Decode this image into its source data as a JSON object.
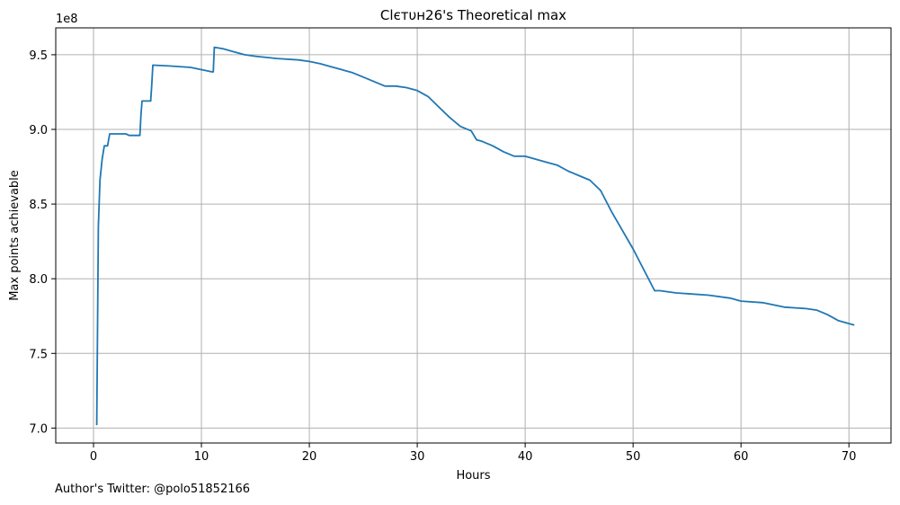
{
  "chart_data": {
    "type": "line",
    "title": "Clєтυн26's Theoretical max",
    "xlabel": "Hours",
    "ylabel": "Max points achievable",
    "y_offset_label": "1e8",
    "xlim": [
      -3.5,
      73.9
    ],
    "ylim": [
      6.9,
      9.68
    ],
    "xticks": [
      0,
      10,
      20,
      30,
      40,
      50,
      60,
      70
    ],
    "yticks": [
      7.0,
      7.5,
      8.0,
      8.5,
      9.0,
      9.5
    ],
    "xtick_labels": [
      "0",
      "10",
      "20",
      "30",
      "40",
      "50",
      "60",
      "70"
    ],
    "ytick_labels": [
      "7.0",
      "7.5",
      "8.0",
      "8.5",
      "9.0",
      "9.5"
    ],
    "grid": true,
    "line_color": "#1f77b4",
    "series": [
      {
        "x": [
          0.3,
          0.45,
          0.6,
          0.8,
          1.0,
          1.3,
          1.5,
          3.0,
          3.3,
          4.0,
          4.3,
          4.4,
          4.5,
          5.3,
          5.4,
          5.5,
          7.0,
          9.0,
          10.0,
          11.0,
          11.1,
          11.2,
          12.0,
          13.0,
          14.0,
          15.0,
          17.0,
          19.0,
          20.0,
          21.0,
          22.0,
          23.0,
          24.0,
          25.0,
          26.0,
          27.0,
          28.0,
          29.0,
          30.0,
          31.0,
          32.0,
          33.0,
          34.0,
          35.0,
          35.5,
          36.0,
          37.0,
          38.0,
          39.0,
          40.0,
          41.0,
          42.0,
          43.0,
          44.0,
          45.0,
          46.0,
          47.0,
          48.0,
          50.0,
          52.0,
          52.5,
          54.0,
          55.0,
          57.0,
          59.0,
          60.0,
          62.0,
          64.0,
          66.0,
          67.0,
          68.0,
          69.0,
          70.0,
          70.5
        ],
        "y": [
          7.02,
          8.35,
          8.66,
          8.8,
          8.89,
          8.89,
          8.97,
          8.97,
          8.96,
          8.96,
          8.96,
          9.1,
          9.19,
          9.19,
          9.3,
          9.43,
          9.425,
          9.415,
          9.4,
          9.385,
          9.385,
          9.55,
          9.54,
          9.52,
          9.5,
          9.49,
          9.475,
          9.465,
          9.455,
          9.44,
          9.42,
          9.4,
          9.38,
          9.35,
          9.32,
          9.29,
          9.29,
          9.28,
          9.26,
          9.22,
          9.15,
          9.08,
          9.02,
          8.99,
          8.93,
          8.92,
          8.89,
          8.85,
          8.82,
          8.82,
          8.8,
          8.78,
          8.76,
          8.72,
          8.69,
          8.66,
          8.59,
          8.45,
          8.2,
          7.92,
          7.92,
          7.905,
          7.9,
          7.89,
          7.87,
          7.85,
          7.84,
          7.81,
          7.8,
          7.79,
          7.76,
          7.72,
          7.7,
          7.69
        ]
      }
    ]
  },
  "footnote": "Author's Twitter: @polo51852166"
}
